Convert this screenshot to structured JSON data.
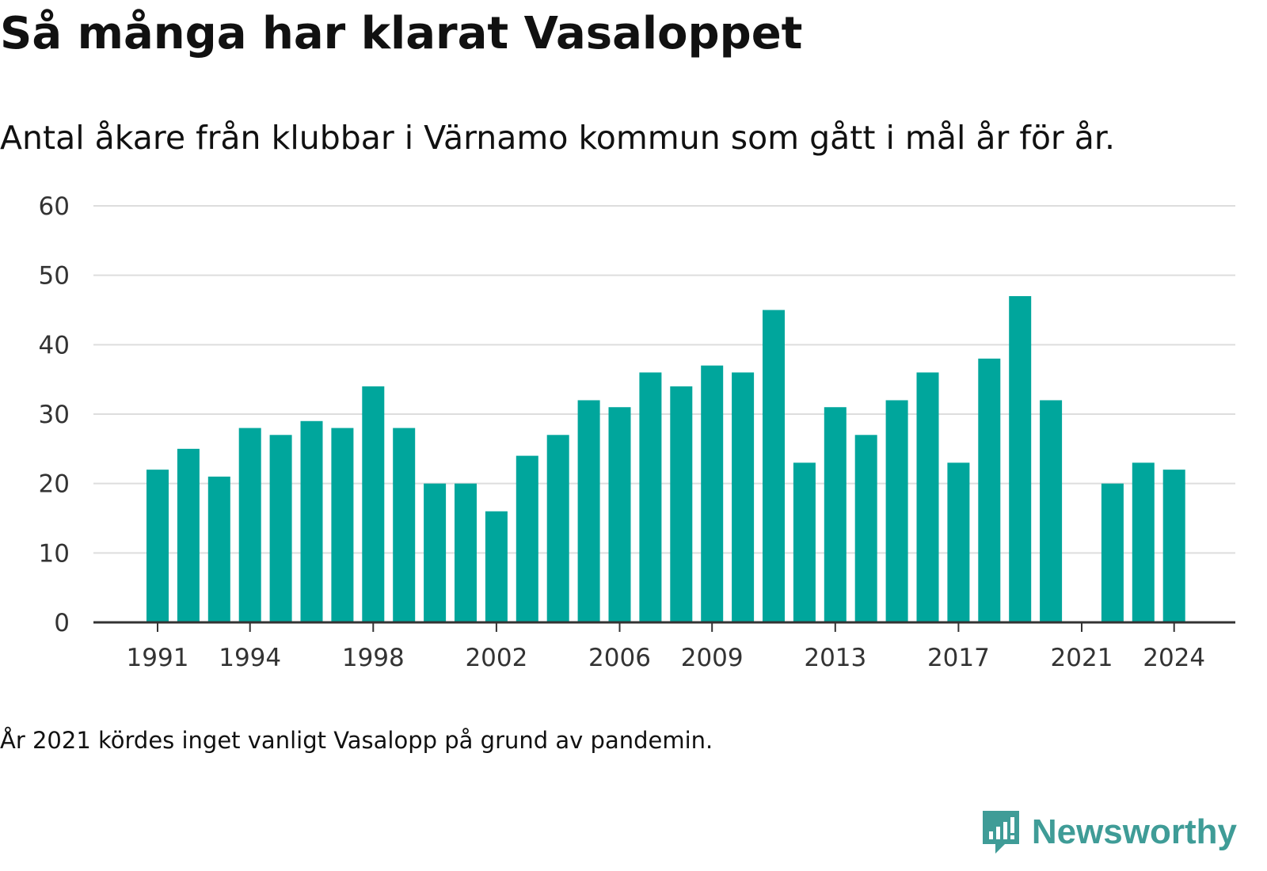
{
  "title": "Så många har klarat Vasaloppet",
  "subtitle": "Antal åkare från klubbar i Värnamo kommun som gått i mål år för år.",
  "note": "År 2021 kördes inget vanligt Vasalopp på grund av pandemin.",
  "brand": {
    "name": "Newsworthy",
    "icon": "newsworthy-logo-icon",
    "color": "#3f9c97"
  },
  "chart_data": {
    "type": "bar",
    "title": "Så många har klarat Vasaloppet",
    "subtitle": "Antal åkare från klubbar i Värnamo kommun som gått i mål år för år.",
    "xlabel": "",
    "ylabel": "",
    "ylim": [
      0,
      60
    ],
    "yticks": [
      0,
      10,
      20,
      30,
      40,
      50,
      60
    ],
    "xticks": [
      1991,
      1994,
      1998,
      2002,
      2006,
      2009,
      2013,
      2017,
      2021,
      2024
    ],
    "grid": true,
    "legend": "none",
    "bar_color": "#00a69c",
    "categories": [
      1991,
      1992,
      1993,
      1994,
      1995,
      1996,
      1997,
      1998,
      1999,
      2000,
      2001,
      2002,
      2003,
      2004,
      2005,
      2006,
      2007,
      2008,
      2009,
      2010,
      2011,
      2012,
      2013,
      2014,
      2015,
      2016,
      2017,
      2018,
      2019,
      2020,
      2021,
      2022,
      2023,
      2024
    ],
    "values": [
      22,
      25,
      21,
      28,
      27,
      29,
      28,
      34,
      28,
      20,
      20,
      16,
      24,
      27,
      32,
      31,
      36,
      34,
      37,
      36,
      45,
      23,
      31,
      27,
      32,
      36,
      23,
      38,
      47,
      32,
      null,
      20,
      23,
      22
    ]
  }
}
